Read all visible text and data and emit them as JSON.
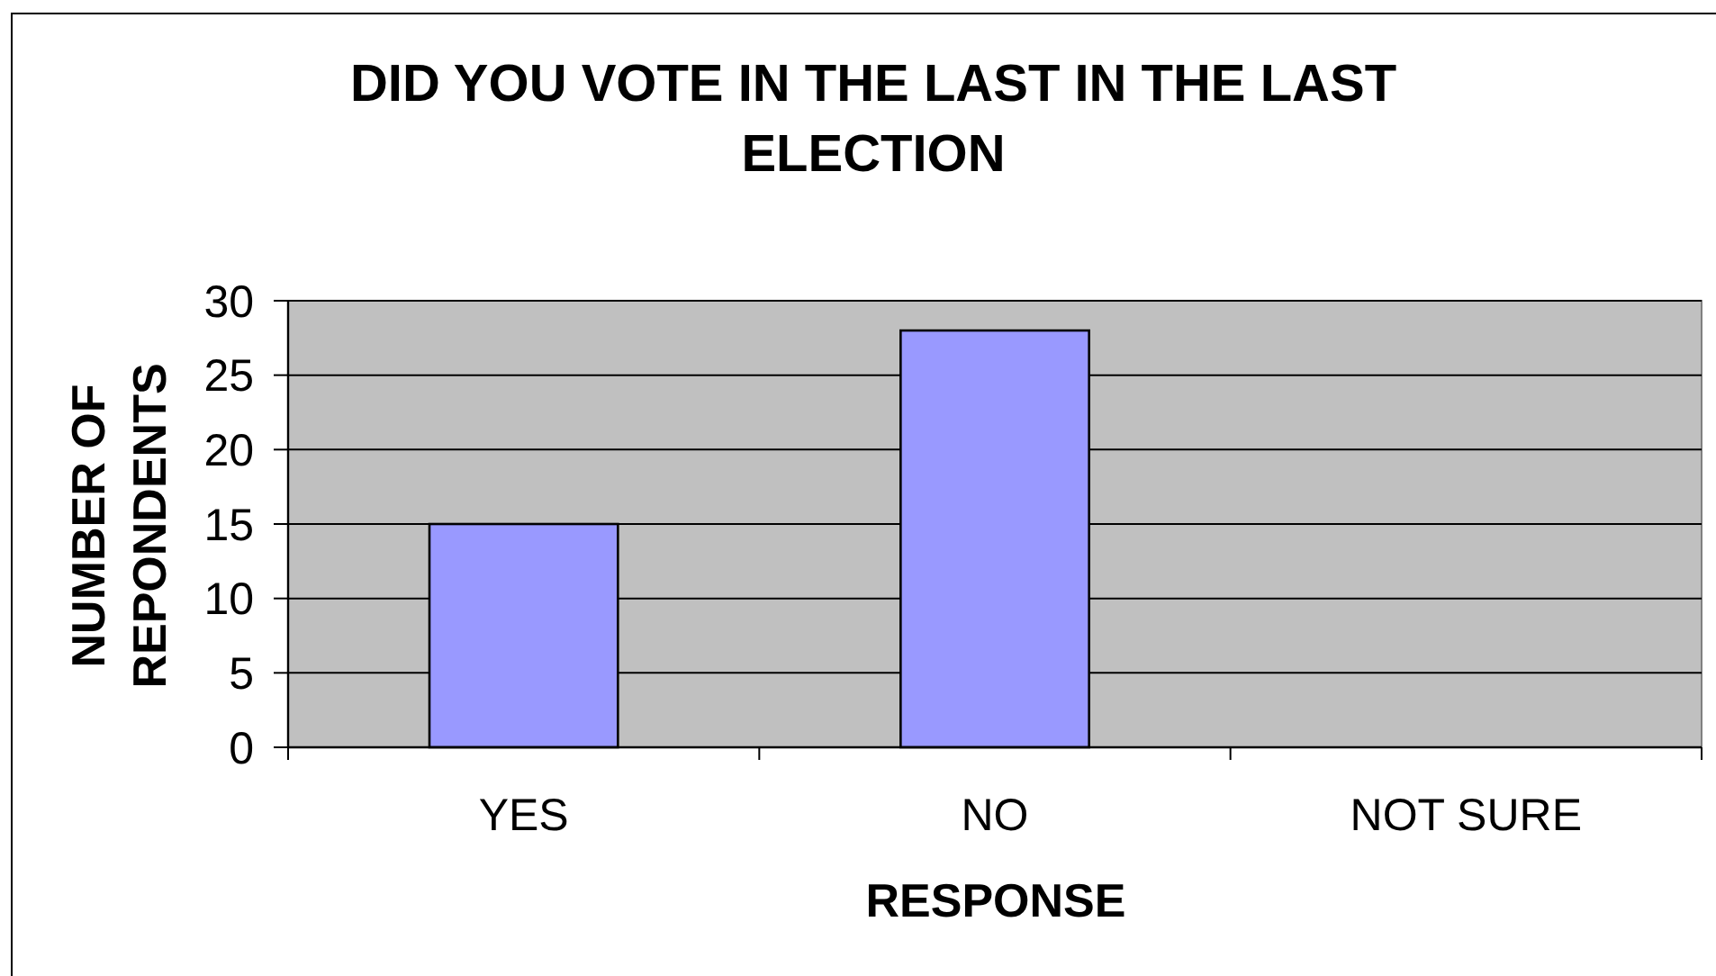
{
  "chart_data": {
    "type": "bar",
    "title": "DID YOU VOTE IN THE LAST IN THE LAST ELECTION",
    "xlabel": "RESPONSE",
    "ylabel": "NUMBER OF REPONDENTS",
    "categories": [
      "YES",
      "NO",
      "NOT SURE"
    ],
    "values": [
      15,
      28,
      0
    ],
    "color": "#9999ff",
    "ylim": [
      0,
      30
    ],
    "yticks": [
      0,
      5,
      10,
      15,
      20,
      25,
      30
    ],
    "grid": "y"
  }
}
